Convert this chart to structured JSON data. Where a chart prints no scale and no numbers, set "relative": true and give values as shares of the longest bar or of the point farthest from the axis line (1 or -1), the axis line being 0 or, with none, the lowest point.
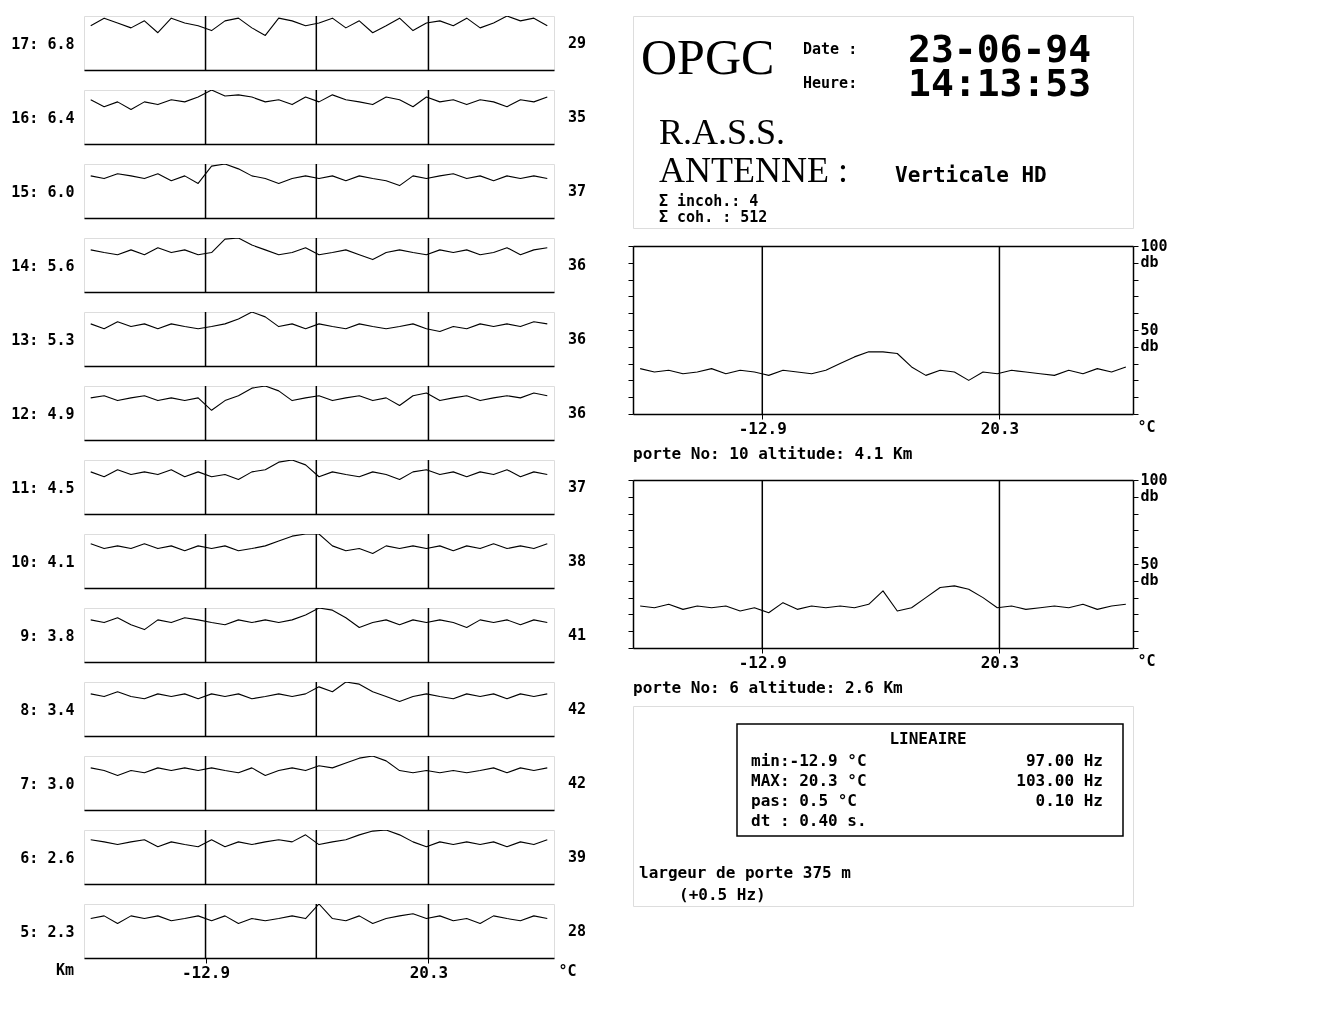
{
  "chart_data": [
    {
      "type": "line",
      "relative": true,
      "tick_labels": false,
      "ylabel": "17: 6.8",
      "y2label": "29",
      "x": [
        -30,
        -28,
        -26,
        -24,
        -22,
        -20,
        -18,
        -16,
        -14,
        -12,
        -10,
        -8,
        -6,
        -4,
        -2,
        0,
        2,
        4,
        6,
        8,
        10,
        12,
        14,
        16,
        18,
        20,
        22,
        24,
        26,
        28,
        30,
        32,
        34,
        36,
        38
      ],
      "xlim": [
        -31,
        39
      ],
      "xticks": [
        -12.9,
        20.3
      ],
      "ref_lines": [
        {
          "axis": "x",
          "value": -12.9
        },
        {
          "axis": "x",
          "value": 3.6
        },
        {
          "axis": "x",
          "value": 20.3
        }
      ],
      "series": [
        {
          "color": "#000000",
          "values": [
            0.82,
            0.96,
            0.87,
            0.78,
            0.91,
            0.69,
            0.96,
            0.87,
            0.82,
            0.73,
            0.91,
            0.96,
            0.78,
            0.64,
            0.96,
            0.91,
            0.82,
            0.87,
            0.96,
            0.78,
            0.91,
            0.69,
            0.82,
            0.96,
            0.73,
            0.87,
            0.91,
            0.82,
            0.96,
            0.78,
            0.87,
            1,
            0.91,
            0.96,
            0.82
          ]
        }
      ]
    },
    {
      "type": "line",
      "relative": true,
      "tick_labels": false,
      "ylabel": "16: 6.4",
      "y2label": "35",
      "x": [
        -30,
        -28,
        -26,
        -24,
        -22,
        -20,
        -18,
        -16,
        -14,
        -12,
        -10,
        -8,
        -6,
        -4,
        -2,
        0,
        2,
        4,
        6,
        8,
        10,
        12,
        14,
        16,
        18,
        20,
        22,
        24,
        26,
        28,
        30,
        32,
        34,
        36,
        38
      ],
      "xlim": [
        -31,
        39
      ],
      "xticks": [
        -12.9,
        20.3
      ],
      "ref_lines": [
        {
          "axis": "x",
          "value": -12.9
        },
        {
          "axis": "x",
          "value": 3.6
        },
        {
          "axis": "x",
          "value": 20.3
        }
      ],
      "series": [
        {
          "color": "#000000",
          "values": [
            0.82,
            0.69,
            0.78,
            0.64,
            0.78,
            0.73,
            0.82,
            0.78,
            0.87,
            1,
            0.89,
            0.91,
            0.87,
            0.78,
            0.82,
            0.73,
            0.87,
            0.78,
            0.91,
            0.82,
            0.78,
            0.73,
            0.87,
            0.82,
            0.69,
            0.87,
            0.78,
            0.82,
            0.73,
            0.82,
            0.78,
            0.69,
            0.82,
            0.78,
            0.87
          ]
        }
      ]
    },
    {
      "type": "line",
      "relative": true,
      "tick_labels": false,
      "ylabel": "15: 6.0",
      "y2label": "37",
      "x": [
        -30,
        -28,
        -26,
        -24,
        -22,
        -20,
        -18,
        -16,
        -14,
        -12,
        -10,
        -8,
        -6,
        -4,
        -2,
        0,
        2,
        4,
        6,
        8,
        10,
        12,
        14,
        16,
        18,
        20,
        22,
        24,
        26,
        28,
        30,
        32,
        34,
        36,
        38
      ],
      "xlim": [
        -31,
        39
      ],
      "xticks": [
        -12.9,
        20.3
      ],
      "ref_lines": [
        {
          "axis": "x",
          "value": -12.9
        },
        {
          "axis": "x",
          "value": 3.6
        },
        {
          "axis": "x",
          "value": 20.3
        }
      ],
      "series": [
        {
          "color": "#000000",
          "values": [
            0.78,
            0.73,
            0.82,
            0.78,
            0.73,
            0.82,
            0.69,
            0.78,
            0.64,
            0.96,
            1,
            0.91,
            0.78,
            0.73,
            0.64,
            0.73,
            0.78,
            0.73,
            0.78,
            0.69,
            0.78,
            0.73,
            0.69,
            0.6,
            0.78,
            0.73,
            0.78,
            0.82,
            0.73,
            0.78,
            0.69,
            0.78,
            0.73,
            0.78,
            0.73
          ]
        }
      ]
    },
    {
      "type": "line",
      "relative": true,
      "tick_labels": false,
      "ylabel": "14: 5.6",
      "y2label": "36",
      "x": [
        -30,
        -28,
        -26,
        -24,
        -22,
        -20,
        -18,
        -16,
        -14,
        -12,
        -10,
        -8,
        -6,
        -4,
        -2,
        0,
        2,
        4,
        6,
        8,
        10,
        12,
        14,
        16,
        18,
        20,
        22,
        24,
        26,
        28,
        30,
        32,
        34,
        36,
        38
      ],
      "xlim": [
        -31,
        39
      ],
      "xticks": [
        -12.9,
        20.3
      ],
      "ref_lines": [
        {
          "axis": "x",
          "value": -12.9
        },
        {
          "axis": "x",
          "value": 3.6
        },
        {
          "axis": "x",
          "value": 20.3
        }
      ],
      "series": [
        {
          "color": "#000000",
          "values": [
            0.78,
            0.73,
            0.69,
            0.78,
            0.69,
            0.82,
            0.73,
            0.78,
            0.69,
            0.73,
            0.98,
            1,
            0.87,
            0.78,
            0.69,
            0.73,
            0.82,
            0.69,
            0.73,
            0.78,
            0.69,
            0.6,
            0.73,
            0.78,
            0.73,
            0.69,
            0.78,
            0.73,
            0.78,
            0.69,
            0.73,
            0.82,
            0.69,
            0.78,
            0.82
          ]
        }
      ]
    },
    {
      "type": "line",
      "relative": true,
      "tick_labels": false,
      "ylabel": "13: 5.3",
      "y2label": "36",
      "x": [
        -30,
        -28,
        -26,
        -24,
        -22,
        -20,
        -18,
        -16,
        -14,
        -12,
        -10,
        -8,
        -6,
        -4,
        -2,
        0,
        2,
        4,
        6,
        8,
        10,
        12,
        14,
        16,
        18,
        20,
        22,
        24,
        26,
        28,
        30,
        32,
        34,
        36,
        38
      ],
      "xlim": [
        -31,
        39
      ],
      "xticks": [
        -12.9,
        20.3
      ],
      "ref_lines": [
        {
          "axis": "x",
          "value": -12.9
        },
        {
          "axis": "x",
          "value": 3.6
        },
        {
          "axis": "x",
          "value": 20.3
        }
      ],
      "series": [
        {
          "color": "#000000",
          "values": [
            0.78,
            0.69,
            0.82,
            0.73,
            0.78,
            0.69,
            0.78,
            0.73,
            0.69,
            0.73,
            0.78,
            0.87,
            1,
            0.91,
            0.73,
            0.78,
            0.69,
            0.78,
            0.73,
            0.69,
            0.78,
            0.73,
            0.69,
            0.73,
            0.78,
            0.69,
            0.64,
            0.73,
            0.69,
            0.78,
            0.73,
            0.78,
            0.73,
            0.82,
            0.78
          ]
        }
      ]
    },
    {
      "type": "line",
      "relative": true,
      "tick_labels": false,
      "ylabel": "12: 4.9",
      "y2label": "36",
      "x": [
        -30,
        -28,
        -26,
        -24,
        -22,
        -20,
        -18,
        -16,
        -14,
        -12,
        -10,
        -8,
        -6,
        -4,
        -2,
        0,
        2,
        4,
        6,
        8,
        10,
        12,
        14,
        16,
        18,
        20,
        22,
        24,
        26,
        28,
        30,
        32,
        34,
        36,
        38
      ],
      "xlim": [
        -31,
        39
      ],
      "xticks": [
        -12.9,
        20.3
      ],
      "ref_lines": [
        {
          "axis": "x",
          "value": -12.9
        },
        {
          "axis": "x",
          "value": 3.6
        },
        {
          "axis": "x",
          "value": 20.3
        }
      ],
      "series": [
        {
          "color": "#000000",
          "values": [
            0.78,
            0.82,
            0.73,
            0.78,
            0.82,
            0.73,
            0.78,
            0.73,
            0.78,
            0.55,
            0.73,
            0.82,
            0.96,
            1,
            0.91,
            0.73,
            0.78,
            0.82,
            0.73,
            0.78,
            0.82,
            0.73,
            0.78,
            0.64,
            0.82,
            0.87,
            0.73,
            0.78,
            0.82,
            0.73,
            0.78,
            0.82,
            0.78,
            0.87,
            0.82
          ]
        }
      ]
    },
    {
      "type": "line",
      "relative": true,
      "tick_labels": false,
      "ylabel": "11: 4.5",
      "y2label": "37",
      "x": [
        -30,
        -28,
        -26,
        -24,
        -22,
        -20,
        -18,
        -16,
        -14,
        -12,
        -10,
        -8,
        -6,
        -4,
        -2,
        0,
        2,
        4,
        6,
        8,
        10,
        12,
        14,
        16,
        18,
        20,
        22,
        24,
        26,
        28,
        30,
        32,
        34,
        36,
        38
      ],
      "xlim": [
        -31,
        39
      ],
      "xticks": [
        -12.9,
        20.3
      ],
      "ref_lines": [
        {
          "axis": "x",
          "value": -12.9
        },
        {
          "axis": "x",
          "value": 3.6
        },
        {
          "axis": "x",
          "value": 20.3
        }
      ],
      "series": [
        {
          "color": "#000000",
          "values": [
            0.78,
            0.69,
            0.82,
            0.73,
            0.78,
            0.73,
            0.82,
            0.69,
            0.78,
            0.69,
            0.73,
            0.64,
            0.78,
            0.82,
            0.96,
            1,
            0.91,
            0.69,
            0.78,
            0.73,
            0.69,
            0.78,
            0.73,
            0.64,
            0.78,
            0.82,
            0.73,
            0.78,
            0.69,
            0.78,
            0.73,
            0.82,
            0.69,
            0.78,
            0.73
          ]
        }
      ]
    },
    {
      "type": "line",
      "relative": true,
      "tick_labels": false,
      "ylabel": "10: 4.1",
      "y2label": "38",
      "x": [
        -30,
        -28,
        -26,
        -24,
        -22,
        -20,
        -18,
        -16,
        -14,
        -12,
        -10,
        -8,
        -6,
        -4,
        -2,
        0,
        2,
        4,
        6,
        8,
        10,
        12,
        14,
        16,
        18,
        20,
        22,
        24,
        26,
        28,
        30,
        32,
        34,
        36,
        38
      ],
      "xlim": [
        -31,
        39
      ],
      "xticks": [
        -12.9,
        20.3
      ],
      "ref_lines": [
        {
          "axis": "x",
          "value": -12.9
        },
        {
          "axis": "x",
          "value": 3.6
        },
        {
          "axis": "x",
          "value": 20.3
        }
      ],
      "series": [
        {
          "color": "#000000",
          "values": [
            0.82,
            0.73,
            0.78,
            0.73,
            0.82,
            0.73,
            0.78,
            0.69,
            0.78,
            0.73,
            0.78,
            0.69,
            0.73,
            0.78,
            0.87,
            0.96,
            1,
            1,
            0.78,
            0.69,
            0.73,
            0.64,
            0.78,
            0.73,
            0.78,
            0.73,
            0.78,
            0.69,
            0.78,
            0.73,
            0.82,
            0.73,
            0.78,
            0.73,
            0.82
          ]
        }
      ]
    },
    {
      "type": "line",
      "relative": true,
      "tick_labels": false,
      "ylabel": "9: 3.8",
      "y2label": "41",
      "x": [
        -30,
        -28,
        -26,
        -24,
        -22,
        -20,
        -18,
        -16,
        -14,
        -12,
        -10,
        -8,
        -6,
        -4,
        -2,
        0,
        2,
        4,
        6,
        8,
        10,
        12,
        14,
        16,
        18,
        20,
        22,
        24,
        26,
        28,
        30,
        32,
        34,
        36,
        38
      ],
      "xlim": [
        -31,
        39
      ],
      "xticks": [
        -12.9,
        20.3
      ],
      "ref_lines": [
        {
          "axis": "x",
          "value": -12.9
        },
        {
          "axis": "x",
          "value": 3.6
        },
        {
          "axis": "x",
          "value": 20.3
        }
      ],
      "series": [
        {
          "color": "#000000",
          "values": [
            0.78,
            0.73,
            0.82,
            0.69,
            0.6,
            0.78,
            0.73,
            0.82,
            0.78,
            0.73,
            0.69,
            0.78,
            0.73,
            0.78,
            0.73,
            0.78,
            0.87,
            1,
            0.96,
            0.82,
            0.64,
            0.73,
            0.78,
            0.69,
            0.78,
            0.73,
            0.78,
            0.73,
            0.64,
            0.78,
            0.73,
            0.78,
            0.69,
            0.78,
            0.73
          ]
        }
      ]
    },
    {
      "type": "line",
      "relative": true,
      "tick_labels": false,
      "ylabel": "8: 3.4",
      "y2label": "42",
      "x": [
        -30,
        -28,
        -26,
        -24,
        -22,
        -20,
        -18,
        -16,
        -14,
        -12,
        -10,
        -8,
        -6,
        -4,
        -2,
        0,
        2,
        4,
        6,
        8,
        10,
        12,
        14,
        16,
        18,
        20,
        22,
        24,
        26,
        28,
        30,
        32,
        34,
        36,
        38
      ],
      "xlim": [
        -31,
        39
      ],
      "xticks": [
        -12.9,
        20.3
      ],
      "ref_lines": [
        {
          "axis": "x",
          "value": -12.9
        },
        {
          "axis": "x",
          "value": 3.6
        },
        {
          "axis": "x",
          "value": 20.3
        }
      ],
      "series": [
        {
          "color": "#000000",
          "values": [
            0.78,
            0.73,
            0.82,
            0.73,
            0.69,
            0.78,
            0.73,
            0.78,
            0.69,
            0.78,
            0.73,
            0.78,
            0.69,
            0.73,
            0.78,
            0.73,
            0.78,
            0.91,
            0.82,
            1,
            0.96,
            0.82,
            0.73,
            0.64,
            0.73,
            0.78,
            0.73,
            0.69,
            0.78,
            0.73,
            0.78,
            0.69,
            0.78,
            0.73,
            0.78
          ]
        }
      ]
    },
    {
      "type": "line",
      "relative": true,
      "tick_labels": false,
      "ylabel": "7: 3.0",
      "y2label": "42",
      "x": [
        -30,
        -28,
        -26,
        -24,
        -22,
        -20,
        -18,
        -16,
        -14,
        -12,
        -10,
        -8,
        -6,
        -4,
        -2,
        0,
        2,
        4,
        6,
        8,
        10,
        12,
        14,
        16,
        18,
        20,
        22,
        24,
        26,
        28,
        30,
        32,
        34,
        36,
        38
      ],
      "xlim": [
        -31,
        39
      ],
      "xticks": [
        -12.9,
        20.3
      ],
      "ref_lines": [
        {
          "axis": "x",
          "value": -12.9
        },
        {
          "axis": "x",
          "value": 3.6
        },
        {
          "axis": "x",
          "value": 20.3
        }
      ],
      "series": [
        {
          "color": "#000000",
          "values": [
            0.78,
            0.73,
            0.64,
            0.73,
            0.69,
            0.78,
            0.73,
            0.78,
            0.73,
            0.78,
            0.73,
            0.69,
            0.78,
            0.64,
            0.73,
            0.78,
            0.73,
            0.82,
            0.78,
            0.87,
            0.96,
            1,
            0.91,
            0.73,
            0.69,
            0.73,
            0.69,
            0.73,
            0.69,
            0.73,
            0.78,
            0.69,
            0.78,
            0.73,
            0.78
          ]
        }
      ]
    },
    {
      "type": "line",
      "relative": true,
      "tick_labels": false,
      "ylabel": "6: 2.6",
      "y2label": "39",
      "x": [
        -30,
        -28,
        -26,
        -24,
        -22,
        -20,
        -18,
        -16,
        -14,
        -12,
        -10,
        -8,
        -6,
        -4,
        -2,
        0,
        2,
        4,
        6,
        8,
        10,
        12,
        14,
        16,
        18,
        20,
        22,
        24,
        26,
        28,
        30,
        32,
        34,
        36,
        38
      ],
      "xlim": [
        -31,
        39
      ],
      "xticks": [
        -12.9,
        20.3
      ],
      "ref_lines": [
        {
          "axis": "x",
          "value": -12.9
        },
        {
          "axis": "x",
          "value": 3.6
        },
        {
          "axis": "x",
          "value": 20.3
        }
      ],
      "series": [
        {
          "color": "#000000",
          "values": [
            0.82,
            0.78,
            0.73,
            0.78,
            0.82,
            0.69,
            0.78,
            0.73,
            0.69,
            0.82,
            0.69,
            0.78,
            0.73,
            0.78,
            0.82,
            0.78,
            0.91,
            0.73,
            0.78,
            0.82,
            0.91,
            0.98,
            1,
            0.91,
            0.78,
            0.69,
            0.78,
            0.73,
            0.78,
            0.73,
            0.78,
            0.69,
            0.78,
            0.73,
            0.82
          ]
        }
      ]
    },
    {
      "type": "line",
      "relative": true,
      "tick_labels": "x",
      "ylabel": "5: 2.3",
      "y2label": "28",
      "xlabel": "°C",
      "annotations": [
        "Km"
      ],
      "x": [
        -30,
        -28,
        -26,
        -24,
        -22,
        -20,
        -18,
        -16,
        -14,
        -12,
        -10,
        -8,
        -6,
        -4,
        -2,
        0,
        2,
        4,
        6,
        8,
        10,
        12,
        14,
        16,
        18,
        20,
        22,
        24,
        26,
        28,
        30,
        32,
        34,
        36,
        38
      ],
      "xlim": [
        -31,
        39
      ],
      "xticks": [
        -12.9,
        20.3
      ],
      "ref_lines": [
        {
          "axis": "x",
          "value": -12.9
        },
        {
          "axis": "x",
          "value": 3.6
        },
        {
          "axis": "x",
          "value": 20.3
        }
      ],
      "series": [
        {
          "color": "#000000",
          "values": [
            0.73,
            0.78,
            0.64,
            0.78,
            0.73,
            0.78,
            0.69,
            0.73,
            0.78,
            0.69,
            0.78,
            0.64,
            0.73,
            0.69,
            0.73,
            0.78,
            0.73,
            1,
            0.73,
            0.69,
            0.78,
            0.64,
            0.73,
            0.78,
            0.82,
            0.73,
            0.78,
            0.69,
            0.73,
            0.64,
            0.78,
            0.73,
            0.69,
            0.78,
            0.73
          ]
        }
      ]
    },
    {
      "type": "other",
      "annotations": [
        "OPGC",
        "Date :",
        "23-06-94",
        "Heure:",
        "14:13:53",
        "R.A.S.S.",
        "ANTENNE :",
        "Verticale HD",
        "Σ incoh.: 4",
        "Σ coh. : 512"
      ]
    },
    {
      "type": "line",
      "xlabel": "°C",
      "annotations": [
        "porte No: 10 altitude: 4.1 Km"
      ],
      "x": [
        -30,
        -28,
        -26,
        -24,
        -22,
        -20,
        -18,
        -16,
        -14,
        -12,
        -10,
        -8,
        -6,
        -4,
        -2,
        0,
        2,
        4,
        6,
        8,
        10,
        12,
        14,
        16,
        18,
        20,
        22,
        24,
        26,
        28,
        30,
        32,
        34,
        36,
        38
      ],
      "xlim": [
        -31,
        39
      ],
      "xticks": [
        -12.9,
        20.3
      ],
      "ylim": [
        0,
        100
      ],
      "yticks": [
        {
          "value": 0,
          "label": null
        },
        {
          "value": 10,
          "label": null
        },
        {
          "value": 20,
          "label": null
        },
        {
          "value": 30,
          "label": null
        },
        {
          "value": 40,
          "label": null
        },
        {
          "value": 50,
          "label": "50 db"
        },
        {
          "value": 60,
          "label": null
        },
        {
          "value": 70,
          "label": null
        },
        {
          "value": 80,
          "label": null
        },
        {
          "value": 90,
          "label": null
        },
        {
          "value": 100,
          "label": "100 db"
        }
      ],
      "ref_lines": [
        {
          "axis": "x",
          "value": -12.9
        },
        {
          "axis": "x",
          "value": 20.3
        }
      ],
      "series": [
        {
          "color": "#000000",
          "values": [
            27,
            25,
            26,
            24,
            25,
            27,
            24,
            26,
            25,
            23,
            26,
            25,
            24,
            26,
            30,
            34,
            37,
            37,
            36,
            28,
            23,
            26,
            25,
            20,
            25,
            24,
            26,
            25,
            24,
            23,
            26,
            24,
            27,
            25,
            28
          ]
        }
      ]
    },
    {
      "type": "line",
      "xlabel": "°C",
      "annotations": [
        "porte No: 6 altitude: 2.6 Km"
      ],
      "x": [
        -30,
        -28,
        -26,
        -24,
        -22,
        -20,
        -18,
        -16,
        -14,
        -12,
        -10,
        -8,
        -6,
        -4,
        -2,
        0,
        2,
        4,
        6,
        8,
        10,
        12,
        14,
        16,
        18,
        20,
        22,
        24,
        26,
        28,
        30,
        32,
        34,
        36,
        38
      ],
      "xlim": [
        -31,
        39
      ],
      "xticks": [
        -12.9,
        20.3
      ],
      "ylim": [
        0,
        100
      ],
      "yticks": [
        {
          "value": 0,
          "label": null
        },
        {
          "value": 10,
          "label": null
        },
        {
          "value": 20,
          "label": null
        },
        {
          "value": 30,
          "label": null
        },
        {
          "value": 40,
          "label": null
        },
        {
          "value": 50,
          "label": "50 db"
        },
        {
          "value": 60,
          "label": null
        },
        {
          "value": 70,
          "label": null
        },
        {
          "value": 80,
          "label": null
        },
        {
          "value": 90,
          "label": null
        },
        {
          "value": 100,
          "label": "100 db"
        }
      ],
      "ref_lines": [
        {
          "axis": "x",
          "value": -12.9
        },
        {
          "axis": "x",
          "value": 20.3
        }
      ],
      "series": [
        {
          "color": "#000000",
          "values": [
            25,
            24,
            26,
            23,
            25,
            24,
            25,
            22,
            24,
            21,
            27,
            23,
            25,
            24,
            25,
            24,
            26,
            34,
            22,
            24,
            30,
            36,
            37,
            35,
            30,
            24,
            25,
            23,
            24,
            25,
            24,
            26,
            23,
            25,
            26
          ]
        }
      ]
    },
    {
      "type": "other",
      "title": "LINEAIRE",
      "annotations": [
        "min:-12.9 °C",
        "97.00 Hz",
        "MAX: 20.3 °C",
        "103.00 Hz",
        "pas: 0.5 °C",
        "0.10 Hz",
        "dt : 0.40 s.",
        "largeur de porte 375 m",
        "(+0.5 Hz)"
      ]
    }
  ]
}
